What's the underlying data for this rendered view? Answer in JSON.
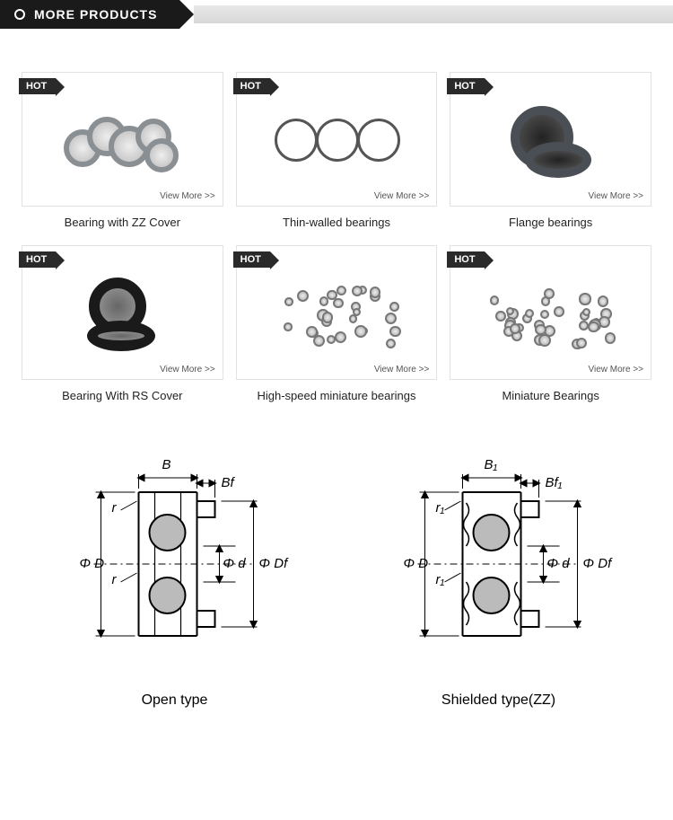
{
  "header": {
    "title": "MORE PRODUCTS"
  },
  "badge": "HOT",
  "view_more": "View More >>",
  "products": [
    {
      "caption": "Bearing with ZZ Cover"
    },
    {
      "caption": "Thin-walled bearings"
    },
    {
      "caption": "Flange bearings"
    },
    {
      "caption": "Bearing With RS Cover"
    },
    {
      "caption": "High-speed miniature bearings"
    },
    {
      "caption": "Miniature Bearings"
    }
  ],
  "diagrams": {
    "open": {
      "caption": "Open type",
      "B": "B",
      "Bf": "Bf",
      "r_top": "r",
      "r_bot": "r",
      "D": "D",
      "d": "d",
      "Df": "Df"
    },
    "zz": {
      "caption": "Shielded type(ZZ)",
      "B": "B₁",
      "Bf": "Bf₁",
      "r_top": "r₁",
      "r_bot": "r₁",
      "D": "D",
      "d": "d",
      "Df": "Df"
    }
  },
  "colors": {
    "line": "#000000"
  }
}
